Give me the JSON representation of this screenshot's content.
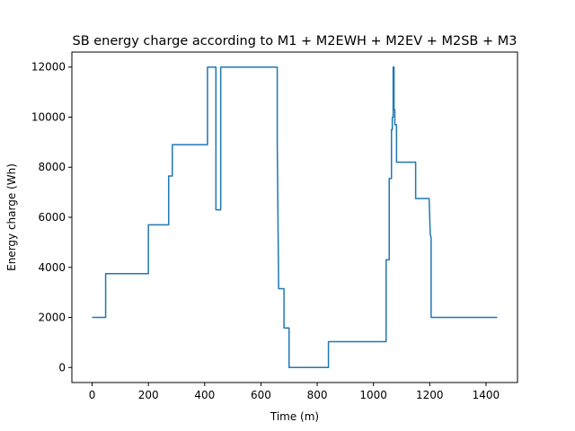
{
  "chart_data": {
    "type": "line",
    "title": "SB energy charge according to M1 + M2EWH + M2EV + M2SB  + M3",
    "xlabel": "Time (m)",
    "ylabel": "Energy charge (Wh)",
    "xlim": [
      -72,
      1512
    ],
    "ylim": [
      -600,
      12600
    ],
    "xticks": [
      0,
      200,
      400,
      600,
      800,
      1000,
      1200,
      1400
    ],
    "yticks": [
      0,
      2000,
      4000,
      6000,
      8000,
      10000,
      12000
    ],
    "grid": false,
    "series": [
      {
        "color": "#1f77b4",
        "x": [
          0,
          48,
          48,
          200,
          200,
          272,
          272,
          285,
          285,
          410,
          410,
          440,
          440,
          457,
          457,
          658,
          658,
          663,
          663,
          682,
          682,
          700,
          700,
          707,
          707,
          840,
          840,
          1045,
          1045,
          1056,
          1056,
          1064,
          1064,
          1067,
          1067,
          1070,
          1070,
          1073,
          1073,
          1076,
          1076,
          1080,
          1080,
          1082,
          1082,
          1150,
          1150,
          1198,
          1198,
          1202,
          1202,
          1205,
          1205,
          1210,
          1210,
          1440
        ],
        "y": [
          2000,
          2000,
          3750,
          3750,
          5700,
          5700,
          7650,
          7650,
          8900,
          8900,
          12000,
          12000,
          6300,
          6300,
          12000,
          12000,
          9000,
          3150,
          3150,
          3150,
          1580,
          1580,
          0,
          0,
          0,
          0,
          1030,
          1030,
          4300,
          4300,
          7550,
          7550,
          9500,
          9500,
          10000,
          10000,
          12000,
          12000,
          10300,
          10300,
          9700,
          9700,
          9700,
          9700,
          8200,
          8200,
          6750,
          6750,
          6700,
          5300,
          5300,
          5200,
          2000,
          2000,
          2000,
          2000
        ]
      }
    ]
  }
}
